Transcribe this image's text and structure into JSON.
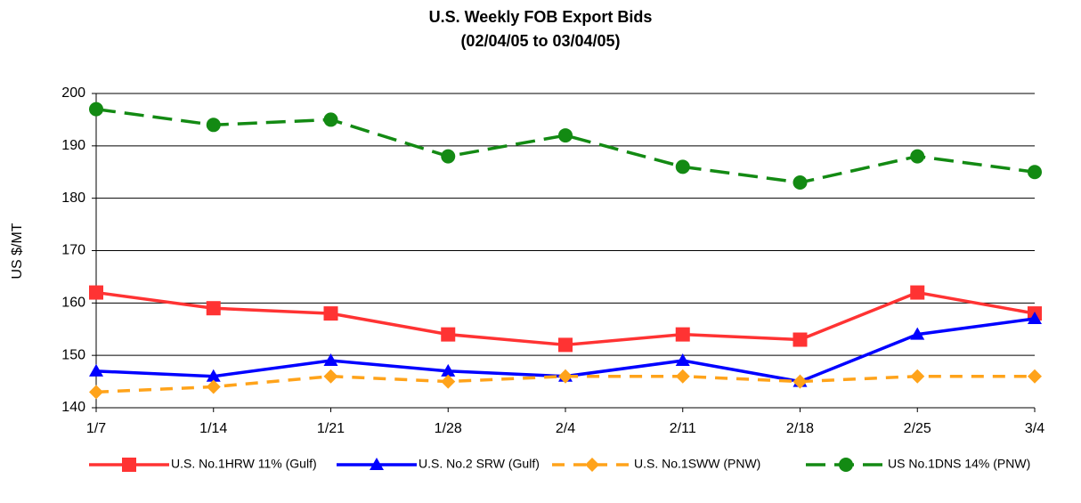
{
  "chart_data": {
    "type": "line",
    "title": "U.S.  Weekly  FOB Export Bids",
    "subtitle": "(02/04/05 to 03/04/05)",
    "y_label": "US $/MT",
    "categories": [
      "1/7",
      "1/14",
      "1/21",
      "1/28",
      "2/4",
      "2/11",
      "2/18",
      "2/25",
      "3/4"
    ],
    "ylim": [
      140,
      200
    ],
    "yticks": [
      140,
      150,
      160,
      170,
      180,
      190,
      200
    ],
    "grid": true,
    "series": [
      {
        "name": "U.S. No.1HRW 11% (Gulf)",
        "color": "#ff3333",
        "marker": "square",
        "linestyle": "solid",
        "values": [
          162,
          159,
          158,
          154,
          152,
          154,
          153,
          162,
          158
        ]
      },
      {
        "name": "U.S. No.2 SRW (Gulf)",
        "color": "#0000ff",
        "marker": "triangle",
        "linestyle": "solid",
        "values": [
          147,
          146,
          149,
          147,
          146,
          149,
          145,
          154,
          157
        ]
      },
      {
        "name": "U.S. No.1SWW (PNW)",
        "color": "#ffa31a",
        "marker": "diamond",
        "linestyle": "dashed",
        "values": [
          143,
          144,
          146,
          145,
          146,
          146,
          145,
          146,
          146
        ]
      },
      {
        "name": "US No.1DNS 14% (PNW)",
        "color": "#138a13",
        "marker": "circle",
        "linestyle": "longdash",
        "values": [
          197,
          194,
          195,
          188,
          192,
          186,
          183,
          188,
          185
        ]
      }
    ]
  }
}
